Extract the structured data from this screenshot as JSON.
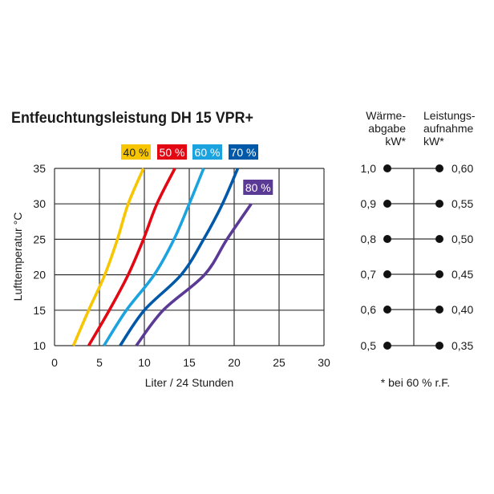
{
  "chart_data": [
    {
      "type": "line",
      "title": "Entfeuchtungsleistung DH 15 VPR+",
      "xlabel": "Liter / 24 Stunden",
      "ylabel": "Lufttemperatur °C",
      "xlim": [
        0,
        30
      ],
      "ylim": [
        10,
        35
      ],
      "xticks": [
        "0",
        "5",
        "10",
        "15",
        "20",
        "25",
        "30"
      ],
      "yticks": [
        "10",
        "15",
        "20",
        "25",
        "30",
        "35"
      ],
      "grid": true,
      "legend": "labels at line ends",
      "series": [
        {
          "name": "40 %",
          "color": "#f7c600",
          "y": [
            10,
            15,
            20,
            25,
            30,
            35
          ],
          "x": [
            2.1,
            3.8,
            5.6,
            7.0,
            8.2,
            9.9
          ]
        },
        {
          "name": "50 %",
          "color": "#e30613",
          "y": [
            10,
            15,
            20,
            25,
            30,
            35
          ],
          "x": [
            3.8,
            6.1,
            8.2,
            9.9,
            11.4,
            13.4
          ]
        },
        {
          "name": "60 %",
          "color": "#1ba3e0",
          "y": [
            10,
            15,
            20,
            25,
            30,
            35
          ],
          "x": [
            5.5,
            8.0,
            11.1,
            13.3,
            15.0,
            16.6
          ]
        },
        {
          "name": "70 %",
          "color": "#0058a8",
          "y": [
            10,
            15,
            20,
            25,
            30,
            35
          ],
          "x": [
            7.3,
            10.0,
            14.1,
            16.6,
            18.7,
            20.4
          ]
        },
        {
          "name": "80 %",
          "color": "#5b3a96",
          "y": [
            10,
            15,
            20,
            25,
            30
          ],
          "x": [
            9.1,
            12.1,
            16.7,
            19.2,
            21.9
          ]
        }
      ]
    },
    {
      "type": "table",
      "left_header": [
        "Wärme-",
        "abgabe",
        "kW*"
      ],
      "right_header": [
        "Leistungs-",
        "aufnahme",
        "kW*"
      ],
      "left_values": [
        "1,0",
        "0,9",
        "0,8",
        "0,7",
        "0,6",
        "0,5"
      ],
      "right_values": [
        "0,60",
        "0,55",
        "0,50",
        "0,45",
        "0,40",
        "0,35"
      ],
      "footnote": "* bei 60 % r.F."
    }
  ]
}
